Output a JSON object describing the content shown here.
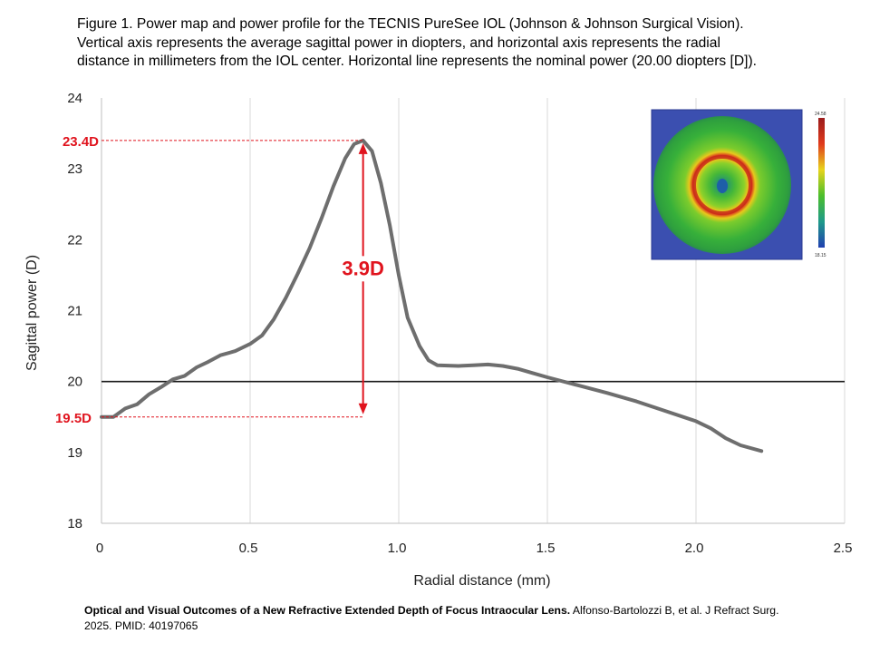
{
  "caption": {
    "line1": "Figure 1. Power map and power profile for the TECNIS PureSee IOL (Johnson & Johnson Surgical Vision).",
    "line2": "Vertical axis represents the average sagittal power in diopters, and horizontal axis represents the radial",
    "line3": "distance in millimeters from the  IOL center. Horizontal line represents the nominal power (20.00 diopters [D])."
  },
  "citation": {
    "title": "Optical and Visual Outcomes of a New Refractive Extended Depth of Focus Intraocular Lens.",
    "authors": " Alfonso-Bartolozzi B, et al. J Refract Surg.",
    "line2": "2025.  PMID: 40197065"
  },
  "chart_data": {
    "type": "line",
    "xlabel": "Radial distance (mm)",
    "ylabel": "Sagittal power (D)",
    "xlim": [
      0,
      2.5
    ],
    "ylim": [
      18,
      24
    ],
    "x_ticks": [
      "0",
      "0.5",
      "1.0",
      "1.5",
      "2.0",
      "2.5"
    ],
    "y_ticks": [
      "18",
      "19",
      "20",
      "21",
      "22",
      "23",
      "24"
    ],
    "grid": "vertical",
    "nominal_power": 20.0,
    "series": [
      {
        "points": [
          [
            0.0,
            19.5
          ],
          [
            0.04,
            19.5
          ],
          [
            0.08,
            19.62
          ],
          [
            0.12,
            19.68
          ],
          [
            0.16,
            19.82
          ],
          [
            0.2,
            19.92
          ],
          [
            0.24,
            20.03
          ],
          [
            0.28,
            20.08
          ],
          [
            0.32,
            20.2
          ],
          [
            0.36,
            20.28
          ],
          [
            0.4,
            20.37
          ],
          [
            0.45,
            20.43
          ],
          [
            0.5,
            20.53
          ],
          [
            0.54,
            20.65
          ],
          [
            0.58,
            20.88
          ],
          [
            0.62,
            21.18
          ],
          [
            0.66,
            21.52
          ],
          [
            0.7,
            21.88
          ],
          [
            0.74,
            22.3
          ],
          [
            0.78,
            22.75
          ],
          [
            0.82,
            23.15
          ],
          [
            0.85,
            23.35
          ],
          [
            0.88,
            23.4
          ],
          [
            0.91,
            23.25
          ],
          [
            0.94,
            22.8
          ],
          [
            0.97,
            22.2
          ],
          [
            1.0,
            21.5
          ],
          [
            1.03,
            20.9
          ],
          [
            1.07,
            20.5
          ],
          [
            1.1,
            20.3
          ],
          [
            1.13,
            20.23
          ],
          [
            1.2,
            20.22
          ],
          [
            1.25,
            20.23
          ],
          [
            1.3,
            20.24
          ],
          [
            1.35,
            20.22
          ],
          [
            1.4,
            20.18
          ],
          [
            1.45,
            20.12
          ],
          [
            1.5,
            20.06
          ],
          [
            1.6,
            19.95
          ],
          [
            1.7,
            19.84
          ],
          [
            1.8,
            19.72
          ],
          [
            1.9,
            19.58
          ],
          [
            2.0,
            19.44
          ],
          [
            2.05,
            19.34
          ],
          [
            2.1,
            19.2
          ],
          [
            2.15,
            19.1
          ],
          [
            2.22,
            19.02
          ]
        ]
      }
    ],
    "annotations": {
      "peak_label": "23.4D",
      "peak_value": 23.4,
      "peak_x": 0.88,
      "base_label": "19.5D",
      "base_value": 19.5,
      "delta_label": "3.9D"
    },
    "inset_map": {
      "max_label": "24.58",
      "min_label": "18.15"
    }
  },
  "colors": {
    "curve": "#6e6e6e",
    "nominal_line": "#1a1a1a",
    "annotation": "#e0141e",
    "grid": "#d9d9d9"
  }
}
